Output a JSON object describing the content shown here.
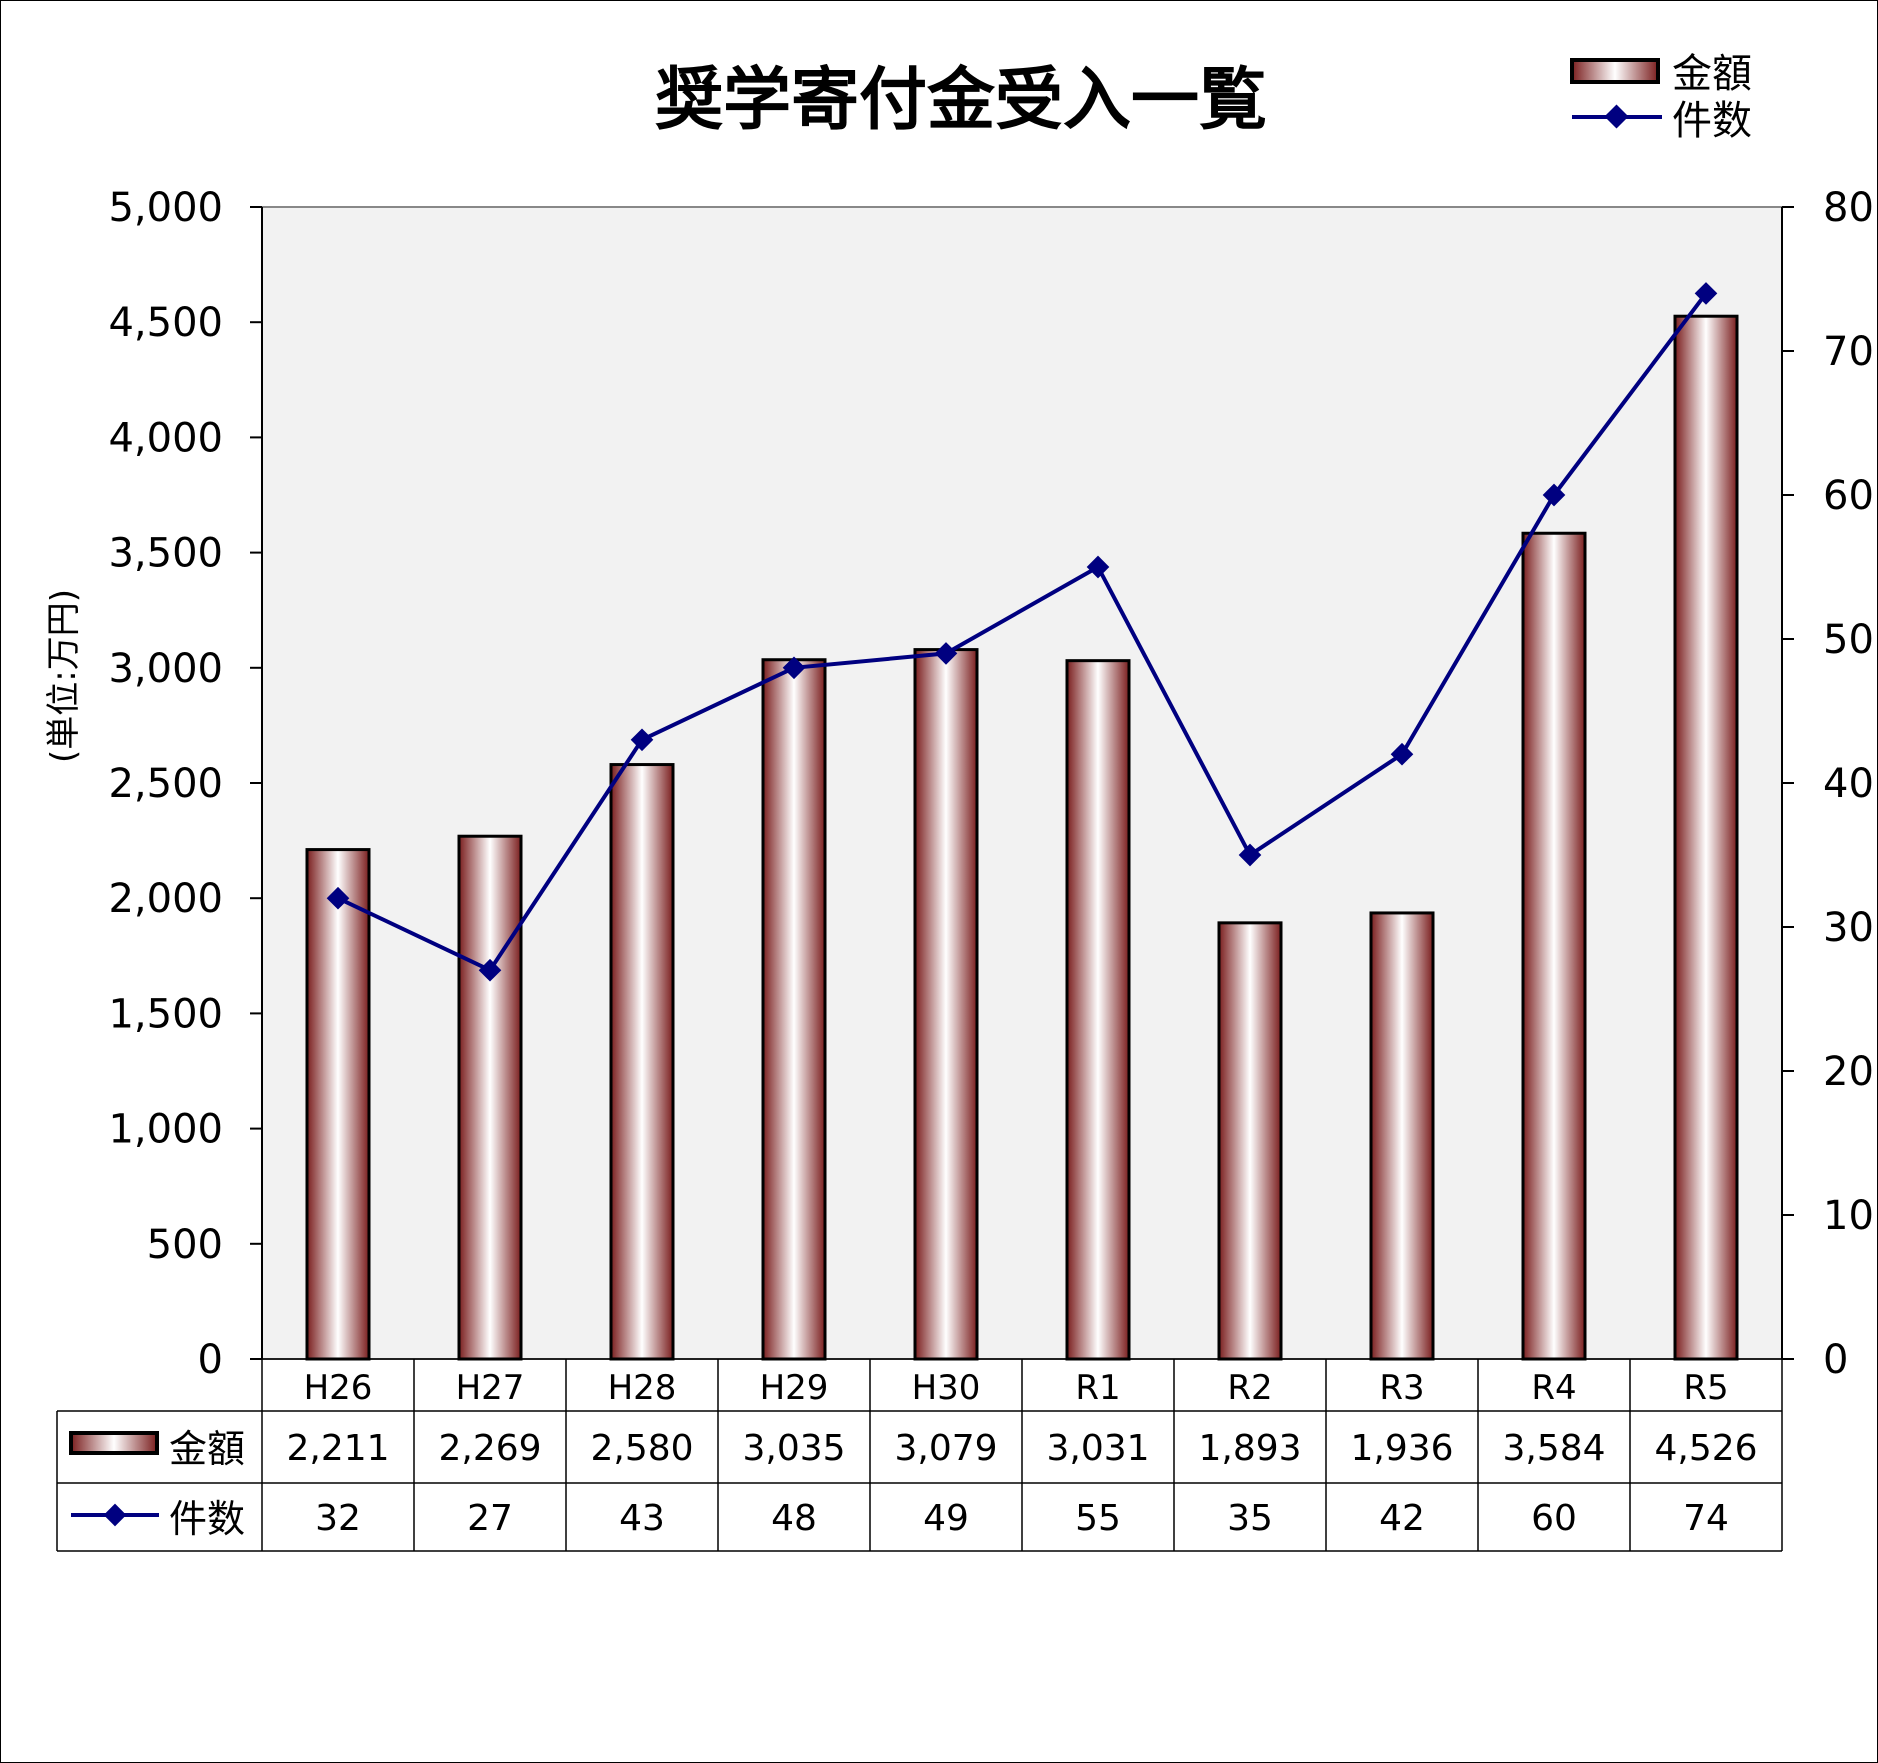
{
  "chart_data": {
    "type": "bar",
    "title": "奨学寄付金受入一覧",
    "ylabel": "(単位:万円)",
    "y2label": "",
    "categories": [
      "H26",
      "H27",
      "H28",
      "H29",
      "H30",
      "R1",
      "R2",
      "R3",
      "R4",
      "R5"
    ],
    "series": [
      {
        "name": "金額",
        "type": "bar",
        "axis": "left",
        "values": [
          2211,
          2269,
          2580,
          3035,
          3079,
          3031,
          1893,
          1936,
          3584,
          4526
        ],
        "labels": [
          "2,211",
          "2,269",
          "2,580",
          "3,035",
          "3,079",
          "3,031",
          "1,893",
          "1,936",
          "3,584",
          "4,526"
        ]
      },
      {
        "name": "件数",
        "type": "line",
        "axis": "right",
        "values": [
          32,
          27,
          43,
          48,
          49,
          55,
          35,
          42,
          60,
          74
        ],
        "labels": [
          "32",
          "27",
          "43",
          "48",
          "49",
          "55",
          "35",
          "42",
          "60",
          "74"
        ]
      }
    ],
    "ylim": [
      0,
      5000
    ],
    "y_ticks": [
      0,
      500,
      1000,
      1500,
      2000,
      2500,
      3000,
      3500,
      4000,
      4500,
      5000
    ],
    "y_tick_labels": [
      "0",
      "500",
      "1,000",
      "1,500",
      "2,000",
      "2,500",
      "3,000",
      "3,500",
      "4,000",
      "4,500",
      "5,000"
    ],
    "y2lim": [
      0,
      80
    ],
    "y2_ticks": [
      0,
      10,
      20,
      30,
      40,
      50,
      60,
      70,
      80
    ],
    "y2_tick_labels": [
      "0",
      "10",
      "20",
      "30",
      "40",
      "50",
      "60",
      "70",
      "80"
    ],
    "legend_position": "top-right",
    "data_table": true,
    "grid": false,
    "colors": {
      "plot_background": "#f2f2f2",
      "bar_edge": "#7a1e1e",
      "bar_center": "#ffffff",
      "bar_outline": "#000000",
      "line": "#000080",
      "marker": "#000080"
    }
  }
}
